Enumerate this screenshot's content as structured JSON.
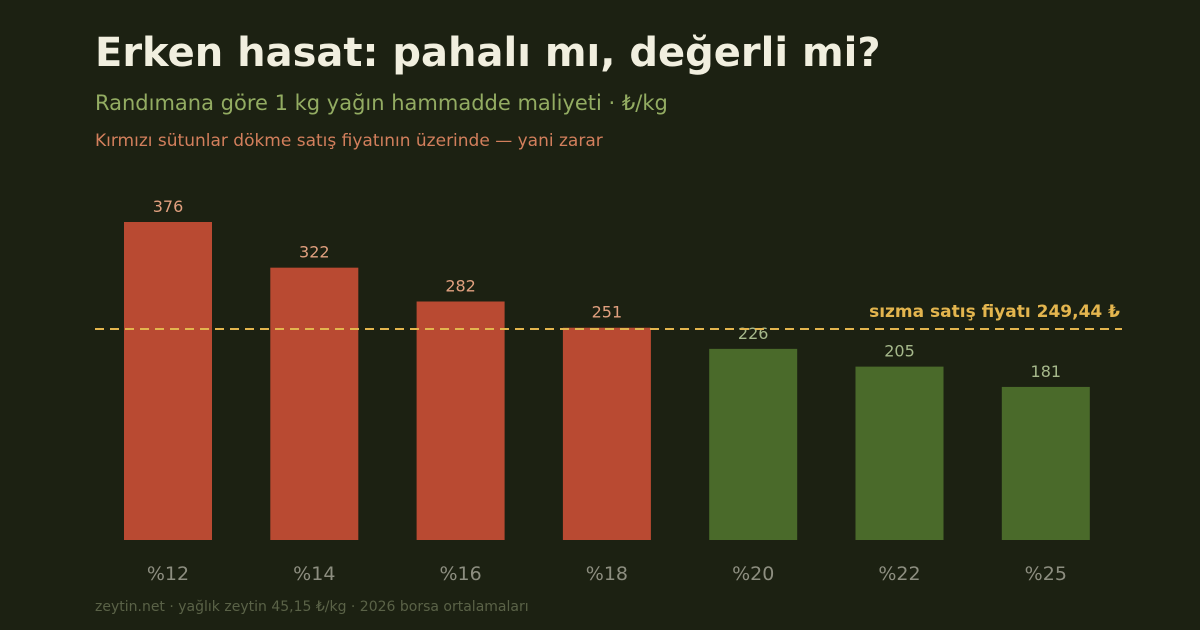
{
  "header": {
    "title": "Erken hasat: pahalı mı, değerli mi?",
    "subtitle": "Randımana göre 1 kg yağın hammadde maliyeti · ₺/kg",
    "note": "Kırmızı sütunlar dökme satış fiyatının üzerinde — yani zarar"
  },
  "footer": {
    "source": "zeytin.net · yağlık zeytin 45,15 ₺/kg · 2026 borsa ortalamaları"
  },
  "colors": {
    "above_price": "#b94a32",
    "below_price": "#4a6a2a",
    "above_label": "#e1a07f",
    "below_label": "#a6b98b",
    "reference_line": "#e3b54e"
  },
  "chart_data": {
    "type": "bar",
    "title": "Erken hasat: pahalı mı, değerli mi?",
    "subtitle": "Randımana göre 1 kg yağın hammadde maliyeti · ₺/kg",
    "xlabel": "",
    "ylabel": "",
    "categories": [
      "%12",
      "%14",
      "%16",
      "%18",
      "%20",
      "%22",
      "%25"
    ],
    "values": [
      376,
      322,
      282,
      251,
      226,
      205,
      181
    ],
    "value_labels": [
      "376",
      "322",
      "282",
      "251",
      "226",
      "205",
      "181"
    ],
    "ylim": [
      0,
      376
    ],
    "grid": false,
    "legend": "none",
    "reference_line": {
      "value": 249.44,
      "label": "sızma satış fiyatı 249,44 ₺"
    }
  }
}
